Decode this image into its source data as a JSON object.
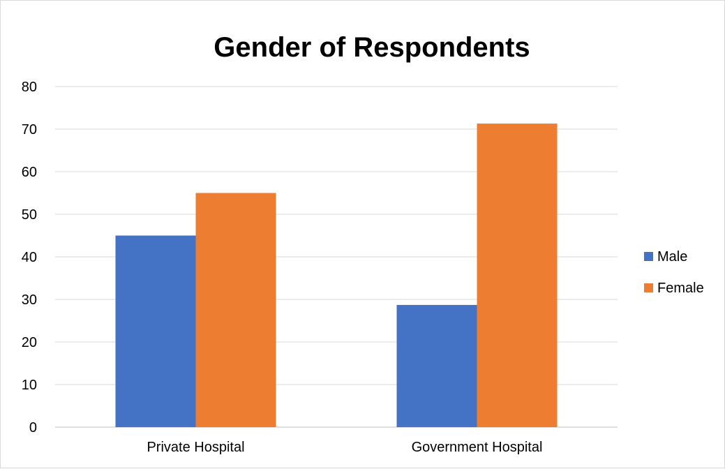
{
  "chart_data": {
    "type": "bar",
    "title": "Gender of Respondents",
    "xlabel": "",
    "ylabel": "",
    "categories": [
      "Private Hospital",
      "Government Hospital"
    ],
    "series": [
      {
        "name": "Male",
        "values": [
          45,
          28.7
        ],
        "color": "#4472C4"
      },
      {
        "name": "Female",
        "values": [
          55,
          71.3
        ],
        "color": "#ED7D31"
      }
    ],
    "ylim": [
      0,
      80
    ],
    "yticks": [
      "0",
      "10",
      "20",
      "30",
      "40",
      "50",
      "60",
      "70",
      "80"
    ],
    "grid": true,
    "legend": "right"
  }
}
